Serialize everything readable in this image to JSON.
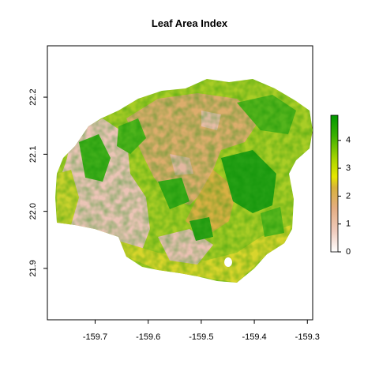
{
  "title": "Leaf Area Index",
  "map": {
    "x_axis": {
      "ticks": [
        "-159.7",
        "-159.6",
        "-159.5",
        "-159.4",
        "-159.3"
      ],
      "range": [
        -159.79,
        -159.29
      ]
    },
    "y_axis": {
      "ticks": [
        "21.9",
        "22.0",
        "22.1",
        "22.2"
      ],
      "range": [
        21.81,
        22.29
      ]
    }
  },
  "legend": {
    "labels": [
      "0",
      "1",
      "2",
      "3",
      "4"
    ],
    "range": [
      0,
      4.9
    ],
    "colors": [
      "#ffffff",
      "#f2cdbd",
      "#e5ad80",
      "#d8b040",
      "#e8e800",
      "#a8d400",
      "#38b000",
      "#009a00"
    ]
  },
  "palette": {
    "pink": "#ebc3b6",
    "tan": "#dcae6a",
    "gold": "#dbb13d",
    "yellow": "#cfd32c",
    "lightgreen": "#a4ce24",
    "green": "#63b81d",
    "darkgreen": "#1c9e14"
  }
}
